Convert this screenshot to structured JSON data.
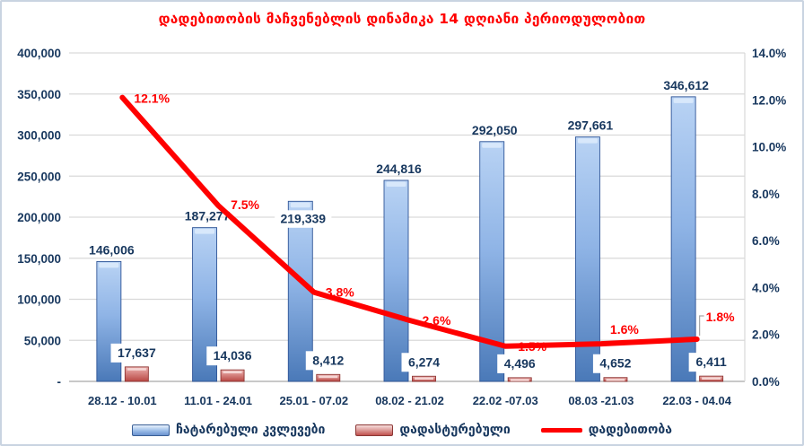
{
  "title": "დადებითობის მაჩვენებლის დინამიკა 14 დღიანი პერიოდულობით",
  "colors": {
    "title_red": "#ff0000",
    "axis_text_navy": "#17375e",
    "bar_blue": "#4f81bd",
    "bar_blue_light": "#b9d3f4",
    "bar_blue_stroke": "#2f5597",
    "bar_red": "#c0504d",
    "bar_red_light": "#edb3b1",
    "bar_red_stroke": "#8e3432",
    "line_red": "#ff0000",
    "gridline": "#d9d9d9",
    "baseline": "#a6a6a6",
    "leader_gray": "#a6a6a6",
    "frame_border": "#c9d4e1"
  },
  "chart_data": {
    "type": "combo",
    "title": "დადებითობის მაჩვენებლის დინამიკა 14 დღიანი პერიოდულობით",
    "categories": [
      "28.12 - 10.01",
      "11.01 - 24.01",
      "25.01 - 07.02",
      "08.02 - 21.02",
      "22.02 -07.03",
      "08.03 -21.03",
      "22.03 - 04.04"
    ],
    "series": [
      {
        "name": "ჩატარებული კვლევები",
        "type": "bar",
        "axis": "left",
        "color": "#4f81bd",
        "values": [
          146006,
          187277,
          219339,
          244816,
          292050,
          297661,
          346612
        ],
        "labels": [
          "146,006",
          "187,277",
          "219,339",
          "244,816",
          "292,050",
          "297,661",
          "346,612"
        ]
      },
      {
        "name": "დადასტურებული",
        "type": "bar",
        "axis": "left",
        "color": "#c0504d",
        "values": [
          17637,
          14036,
          8412,
          6274,
          4496,
          4652,
          6411
        ],
        "labels": [
          "17,637",
          "14,036",
          "8,412",
          "6,274",
          "4,496",
          "4,652",
          "6,411"
        ]
      },
      {
        "name": "დადებითობა",
        "type": "line",
        "axis": "right",
        "color": "#ff0000",
        "values": [
          12.1,
          7.5,
          3.8,
          2.6,
          1.5,
          1.6,
          1.8
        ],
        "labels": [
          "12.1%",
          "7.5%",
          "3.8%",
          "2.6%",
          "1.5%",
          "1.6%",
          "1.8%"
        ]
      }
    ],
    "left_axis": {
      "min": 0,
      "max": 400000,
      "step": 50000,
      "tick_labels": [
        "-",
        "50,000",
        "100,000",
        "150,000",
        "200,000",
        "250,000",
        "300,000",
        "350,000",
        "400,000"
      ]
    },
    "right_axis": {
      "min": 0,
      "max": 14,
      "step": 2,
      "tick_labels": [
        "0.0%",
        "2.0%",
        "4.0%",
        "6.0%",
        "8.0%",
        "10.0%",
        "12.0%",
        "14.0%"
      ]
    },
    "grid": true,
    "legend_position": "bottom"
  }
}
